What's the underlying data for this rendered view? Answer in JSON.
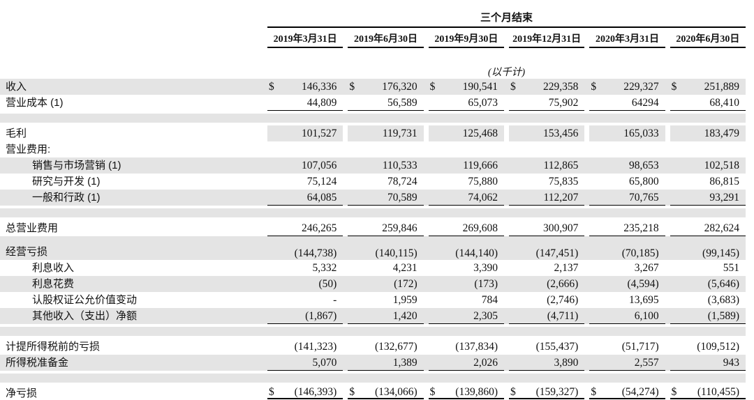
{
  "colors": {
    "background": "#ffffff",
    "row_stripe": "#e4e4e4",
    "text": "#111111",
    "rule": "#000000"
  },
  "table": {
    "group_header": "三个月结束",
    "unit_note": "(以千计)",
    "currency_symbol": "$",
    "columns": [
      "2019年3月31日",
      "2019年6月30日",
      "2019年9月30日",
      "2019年12月31日",
      "2020年3月31日",
      "2020年6月30日"
    ],
    "rows": [
      {
        "label": "收入",
        "dollar": true,
        "bg": "gray",
        "values": [
          "146,336",
          "176,320",
          "190,541",
          "229,358",
          "229,327",
          "251,889"
        ]
      },
      {
        "label": "营业成本 (1)",
        "bg": "white",
        "underline": "single",
        "values": [
          "44,809",
          "56,589",
          "65,073",
          "75,902",
          "64294",
          "68,410"
        ]
      },
      {
        "type": "spacer",
        "bg": "gray"
      },
      {
        "label": "毛利",
        "bg": "gray",
        "bg_scope": "values",
        "values": [
          "101,527",
          "119,731",
          "125,468",
          "153,456",
          "165,033",
          "183,479"
        ]
      },
      {
        "label": "营业费用:",
        "bg": "white",
        "values": [
          "",
          "",
          "",
          "",
          "",
          ""
        ]
      },
      {
        "label": "销售与市场营销 (1)",
        "indent": 1,
        "bg": "gray",
        "values": [
          "107,056",
          "110,533",
          "119,666",
          "112,865",
          "98,653",
          "102,518"
        ]
      },
      {
        "label": "研究与开发 (1)",
        "indent": 1,
        "bg": "white",
        "values": [
          "75,124",
          "78,724",
          "75,880",
          "75,835",
          "65,800",
          "86,815"
        ]
      },
      {
        "label": "一般和行政 (1)",
        "indent": 1,
        "bg": "gray",
        "underline": "single",
        "values": [
          "64,085",
          "70,589",
          "74,062",
          "112,207",
          "70,765",
          "93,291"
        ]
      },
      {
        "type": "spacer",
        "bg": "gray"
      },
      {
        "label": "总营业费用",
        "bg": "white",
        "underline": "single",
        "values": [
          "246,265",
          "259,846",
          "269,608",
          "300,907",
          "235,218",
          "282,624"
        ]
      },
      {
        "label": "经营亏损",
        "bg": "gray",
        "tall": true,
        "values": [
          "(144,738)",
          "(140,115)",
          "(144,140)",
          "(147,451)",
          "(70,185)",
          "(99,145)"
        ]
      },
      {
        "label": "利息收入",
        "indent": 1,
        "bg": "white",
        "values": [
          "5,332",
          "4,231",
          "3,390",
          "2,137",
          "3,267",
          "551"
        ]
      },
      {
        "label": "利息花费",
        "indent": 1,
        "bg": "gray",
        "values": [
          "(50)",
          "(172)",
          "(173)",
          "(2,666)",
          "(4,594)",
          "(5,646)"
        ]
      },
      {
        "label": "认股权证公允价值变动",
        "indent": 1,
        "bg": "white",
        "values": [
          "-",
          "1,959",
          "784",
          "(2,746)",
          "13,695",
          "(3,683)"
        ]
      },
      {
        "label": "其他收入（支出）净额",
        "indent": 1,
        "bg": "gray",
        "underline": "single",
        "values": [
          "(1,867)",
          "1,420",
          "2,305",
          "(4,711)",
          "6,100",
          "(1,589)"
        ]
      },
      {
        "type": "spacer",
        "bg": "gray"
      },
      {
        "label": "计提所得税前的亏损",
        "bg": "white",
        "values": [
          "(141,323)",
          "(132,677)",
          "(137,834)",
          "(155,437)",
          "(51,717)",
          "(109,512)"
        ]
      },
      {
        "label": "所得税准备金",
        "bg": "gray",
        "underline": "single",
        "values": [
          "5,070",
          "1,389",
          "2,026",
          "3,890",
          "2,557",
          "943"
        ]
      },
      {
        "type": "spacer",
        "bg": "gray"
      },
      {
        "label": "净亏损",
        "dollar": true,
        "bg": "white",
        "underline": "double",
        "values": [
          "(146,393)",
          "(134,066)",
          "(139,860)",
          "(159,327)",
          "(54,274)",
          "(110,455)"
        ]
      }
    ]
  }
}
